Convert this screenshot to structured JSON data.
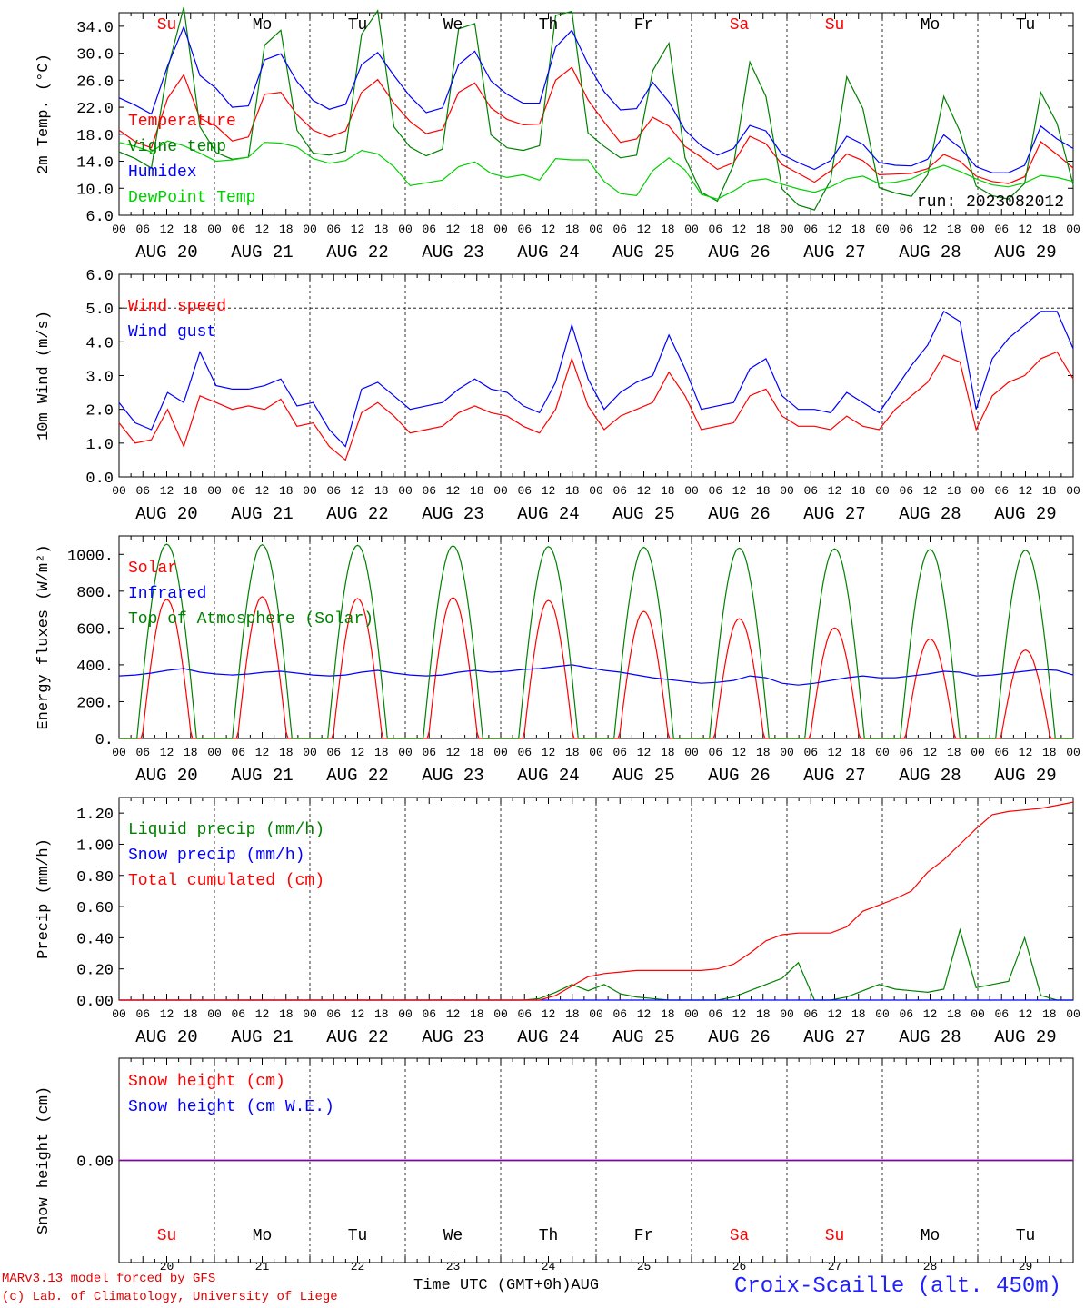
{
  "chart_data": [
    {
      "type": "line",
      "ylabel": "2m Temp. (°C)",
      "ylim": [
        6,
        36
      ],
      "yticks": [
        "6.0",
        "10.0",
        "14.0",
        "18.0",
        "22.0",
        "26.0",
        "30.0",
        "34.0"
      ],
      "run_label": "run: 2023082012",
      "day_names": [
        "Su",
        "Mo",
        "Tu",
        "We",
        "Th",
        "Fr",
        "Sa",
        "Su",
        "Mo",
        "Tu"
      ],
      "series": [
        {
          "name": "Temperature",
          "color": "#ff0000",
          "values": [
            18.6,
            16.9,
            16.0,
            23.3,
            26.8,
            20.4,
            19.2,
            17.0,
            17.6,
            23.9,
            24.2,
            20.9,
            18.6,
            17.6,
            18.5,
            24.2,
            26.1,
            22.6,
            19.9,
            18.1,
            18.7,
            24.2,
            25.6,
            21.9,
            20.2,
            19.4,
            19.5,
            26.0,
            27.9,
            23.1,
            19.8,
            16.8,
            17.3,
            20.5,
            19.2,
            16.2,
            14.6,
            12.8,
            13.8,
            17.7,
            16.6,
            13.5,
            12.2,
            10.9,
            12.6,
            15.1,
            14.1,
            12.0,
            12.1,
            12.2,
            12.9,
            15.0,
            14.0,
            11.8,
            11.0,
            10.7,
            11.7,
            16.9,
            15.0,
            13.0
          ]
        },
        {
          "name": "Vigne temp",
          "color": "#008000",
          "values": [
            15.4,
            14.4,
            13.0,
            27.6,
            36.8,
            19.1,
            15.3,
            14.3,
            14.6,
            31.2,
            33.4,
            18.6,
            15.2,
            14.9,
            15.5,
            32.8,
            36.3,
            19.1,
            16.1,
            14.8,
            15.8,
            33.6,
            34.4,
            17.9,
            16.0,
            15.6,
            16.3,
            35.6,
            36.2,
            18.2,
            16.2,
            14.5,
            14.9,
            27.4,
            31.5,
            14.5,
            9.4,
            8.1,
            13.5,
            28.7,
            23.6,
            9.9,
            7.5,
            6.8,
            11.2,
            26.5,
            21.8,
            10.1,
            9.3,
            8.8,
            12.0,
            23.6,
            18.4,
            10.3,
            8.9,
            8.4,
            10.7,
            24.2,
            19.6,
            10.5
          ]
        },
        {
          "name": "Humidex",
          "color": "#0000ff",
          "values": [
            23.4,
            22.3,
            21.0,
            28.1,
            33.9,
            26.7,
            24.8,
            22.0,
            22.2,
            29.0,
            29.9,
            25.8,
            23.0,
            21.7,
            22.4,
            28.3,
            30.1,
            26.7,
            23.6,
            21.2,
            21.9,
            28.3,
            30.3,
            25.9,
            23.9,
            22.6,
            22.6,
            30.9,
            33.4,
            28.4,
            24.3,
            21.6,
            21.8,
            25.7,
            22.8,
            18.6,
            16.3,
            14.9,
            15.9,
            19.3,
            18.5,
            15.0,
            13.8,
            12.8,
            14.1,
            17.7,
            16.5,
            13.8,
            13.4,
            13.3,
            14.3,
            17.9,
            16.0,
            13.2,
            12.3,
            12.3,
            13.4,
            19.2,
            17.3,
            15.9
          ]
        },
        {
          "name": "DewPoint Temp",
          "color": "#00d000",
          "values": [
            16.8,
            16.2,
            15.4,
            17.0,
            16.3,
            15.2,
            14.0,
            14.2,
            14.6,
            16.8,
            16.7,
            16.1,
            14.4,
            13.7,
            14.1,
            15.6,
            15.1,
            13.2,
            10.4,
            10.8,
            11.2,
            13.2,
            13.9,
            12.2,
            11.6,
            12.0,
            11.2,
            14.4,
            14.2,
            14.2,
            11.0,
            9.2,
            8.9,
            12.6,
            14.5,
            12.7,
            9.1,
            8.4,
            9.6,
            11.1,
            11.4,
            10.6,
            9.9,
            9.4,
            10.2,
            11.4,
            11.8,
            10.7,
            10.9,
            11.4,
            12.6,
            13.4,
            12.5,
            11.4,
            10.5,
            10.2,
            10.8,
            11.9,
            11.6,
            11.0
          ]
        }
      ]
    },
    {
      "type": "line",
      "ylabel": "10m Wind (m/s)",
      "ylim": [
        0,
        6
      ],
      "yticks": [
        "0.0",
        "1.0",
        "2.0",
        "3.0",
        "4.0",
        "5.0",
        "6.0"
      ],
      "series": [
        {
          "name": "Wind speed",
          "color": "#ff0000",
          "values": [
            1.6,
            1.0,
            1.1,
            2.0,
            0.9,
            2.4,
            2.2,
            2.0,
            2.1,
            2.0,
            2.3,
            1.5,
            1.6,
            0.9,
            0.5,
            1.9,
            2.2,
            1.8,
            1.3,
            1.4,
            1.5,
            1.9,
            2.1,
            1.9,
            1.8,
            1.5,
            1.3,
            2.0,
            3.5,
            2.1,
            1.4,
            1.8,
            2.0,
            2.2,
            3.1,
            2.4,
            1.4,
            1.5,
            1.6,
            2.4,
            2.6,
            1.8,
            1.5,
            1.5,
            1.4,
            1.8,
            1.5,
            1.4,
            2.0,
            2.4,
            2.8,
            3.6,
            3.4,
            1.4,
            2.4,
            2.8,
            3.0,
            3.5,
            3.7,
            2.9
          ]
        },
        {
          "name": "Wind gust",
          "color": "#0000ff",
          "values": [
            2.2,
            1.6,
            1.4,
            2.5,
            2.2,
            3.7,
            2.7,
            2.6,
            2.6,
            2.7,
            2.9,
            2.1,
            2.2,
            1.4,
            0.9,
            2.6,
            2.8,
            2.4,
            2.0,
            2.1,
            2.2,
            2.6,
            2.9,
            2.6,
            2.5,
            2.1,
            1.9,
            2.8,
            4.5,
            2.9,
            2.0,
            2.5,
            2.8,
            3.0,
            4.2,
            3.2,
            2.0,
            2.1,
            2.2,
            3.2,
            3.5,
            2.4,
            2.0,
            2.0,
            1.9,
            2.5,
            2.2,
            1.9,
            2.6,
            3.3,
            3.9,
            4.9,
            4.6,
            2.0,
            3.5,
            4.1,
            4.5,
            4.9,
            4.9,
            3.8
          ]
        }
      ]
    },
    {
      "type": "line",
      "ylabel": "Energy fluxes (W/m²)",
      "ylim": [
        0,
        1100
      ],
      "yticks": [
        "0.",
        "200.",
        "400.",
        "600.",
        "800.",
        "1000."
      ],
      "series": [
        {
          "name": "Solar",
          "color": "#ff0000",
          "peaks": [
            755,
            770,
            760,
            765,
            750,
            690,
            650,
            600,
            540,
            480
          ]
        },
        {
          "name": "Infrared",
          "color": "#0000ff",
          "values": [
            340,
            345,
            355,
            370,
            380,
            360,
            350,
            345,
            350,
            360,
            365,
            355,
            345,
            340,
            345,
            360,
            370,
            355,
            345,
            340,
            345,
            360,
            370,
            360,
            365,
            375,
            380,
            390,
            400,
            385,
            370,
            360,
            345,
            330,
            320,
            310,
            300,
            305,
            315,
            340,
            330,
            300,
            290,
            300,
            315,
            330,
            340,
            330,
            330,
            340,
            350,
            365,
            360,
            340,
            345,
            355,
            365,
            375,
            370,
            345
          ]
        },
        {
          "name": "Top of Atmosphere (Solar)",
          "color": "#008000",
          "peaks": [
            1055,
            1052,
            1049,
            1046,
            1042,
            1038,
            1034,
            1030,
            1026,
            1022
          ]
        }
      ]
    },
    {
      "type": "line",
      "ylabel": "Precip (mm/h)",
      "ylim": [
        0,
        1.3
      ],
      "yticks": [
        "0.00",
        "0.20",
        "0.40",
        "0.60",
        "0.80",
        "1.00",
        "1.20"
      ],
      "series": [
        {
          "name": "Liquid precip (mm/h)",
          "color": "#008000",
          "values": [
            0,
            0,
            0,
            0,
            0,
            0,
            0,
            0,
            0,
            0,
            0,
            0,
            0,
            0,
            0,
            0,
            0,
            0,
            0,
            0,
            0,
            0,
            0,
            0,
            0,
            0,
            0.01,
            0.05,
            0.1,
            0.06,
            0.1,
            0.04,
            0.02,
            0.01,
            0,
            0,
            0,
            0,
            0.02,
            0.06,
            0.1,
            0.14,
            0.24,
            0,
            0,
            0.02,
            0.06,
            0.1,
            0.07,
            0.06,
            0.05,
            0.07,
            0.45,
            0.08,
            0.1,
            0.12,
            0.4,
            0.03,
            0,
            0
          ]
        },
        {
          "name": "Snow precip (mm/h)",
          "color": "#0000ff",
          "values": [
            0,
            0,
            0,
            0,
            0,
            0,
            0,
            0,
            0,
            0,
            0,
            0,
            0,
            0,
            0,
            0,
            0,
            0,
            0,
            0,
            0,
            0,
            0,
            0,
            0,
            0,
            0,
            0,
            0,
            0,
            0,
            0,
            0,
            0,
            0,
            0,
            0,
            0,
            0,
            0,
            0,
            0,
            0,
            0,
            0,
            0,
            0,
            0,
            0,
            0,
            0,
            0,
            0,
            0,
            0,
            0,
            0,
            0,
            0,
            0
          ]
        },
        {
          "name": "Total cumulated (cm)",
          "color": "#ff0000",
          "values": [
            0,
            0,
            0,
            0,
            0,
            0,
            0,
            0,
            0,
            0,
            0,
            0,
            0,
            0,
            0,
            0,
            0,
            0,
            0,
            0,
            0,
            0,
            0,
            0,
            0,
            0,
            0,
            0.03,
            0.09,
            0.15,
            0.17,
            0.18,
            0.19,
            0.19,
            0.19,
            0.19,
            0.19,
            0.2,
            0.23,
            0.3,
            0.38,
            0.42,
            0.43,
            0.43,
            0.43,
            0.47,
            0.57,
            0.61,
            0.65,
            0.7,
            0.82,
            0.9,
            1.0,
            1.1,
            1.19,
            1.21,
            1.22,
            1.23,
            1.25,
            1.27
          ]
        }
      ]
    },
    {
      "type": "line",
      "ylabel": "Snow height (cm)",
      "ylim": [
        -1,
        1
      ],
      "yticks": [
        "0.00"
      ],
      "series": [
        {
          "name": "Snow height (cm)",
          "color": "#ff0000",
          "values": [
            0,
            0
          ]
        },
        {
          "name": "Snow height (cm W.E.)",
          "color": "#0000ff",
          "values": [
            0,
            0
          ]
        }
      ]
    }
  ],
  "x_axis": {
    "hour_ticks": [
      "00",
      "06",
      "12",
      "18"
    ],
    "days": [
      "AUG 20",
      "AUG 21",
      "AUG 22",
      "AUG 23",
      "AUG 24",
      "AUG 25",
      "AUG 26",
      "AUG 27",
      "AUG 28",
      "AUG 29"
    ],
    "last_tick": "00",
    "bottom_day_names": [
      "Su",
      "Mo",
      "Tu",
      "We",
      "Th",
      "Fr",
      "Sa",
      "Su",
      "Mo",
      "Tu"
    ],
    "bottom_day_numbers": [
      "20",
      "21",
      "22",
      "23",
      "24",
      "25",
      "26",
      "27",
      "28",
      "29"
    ],
    "weekend_color": "#ff0000",
    "weekday_color": "#000000"
  },
  "footer": {
    "credit_line1": "MARv3.13 model forced by GFS",
    "credit_line2": "(c) Lab. of Climatology, University of Liege",
    "xlabel": "Time UTC (GMT+0h)AUG",
    "station": "Croix-Scaille (alt. 450m)"
  }
}
